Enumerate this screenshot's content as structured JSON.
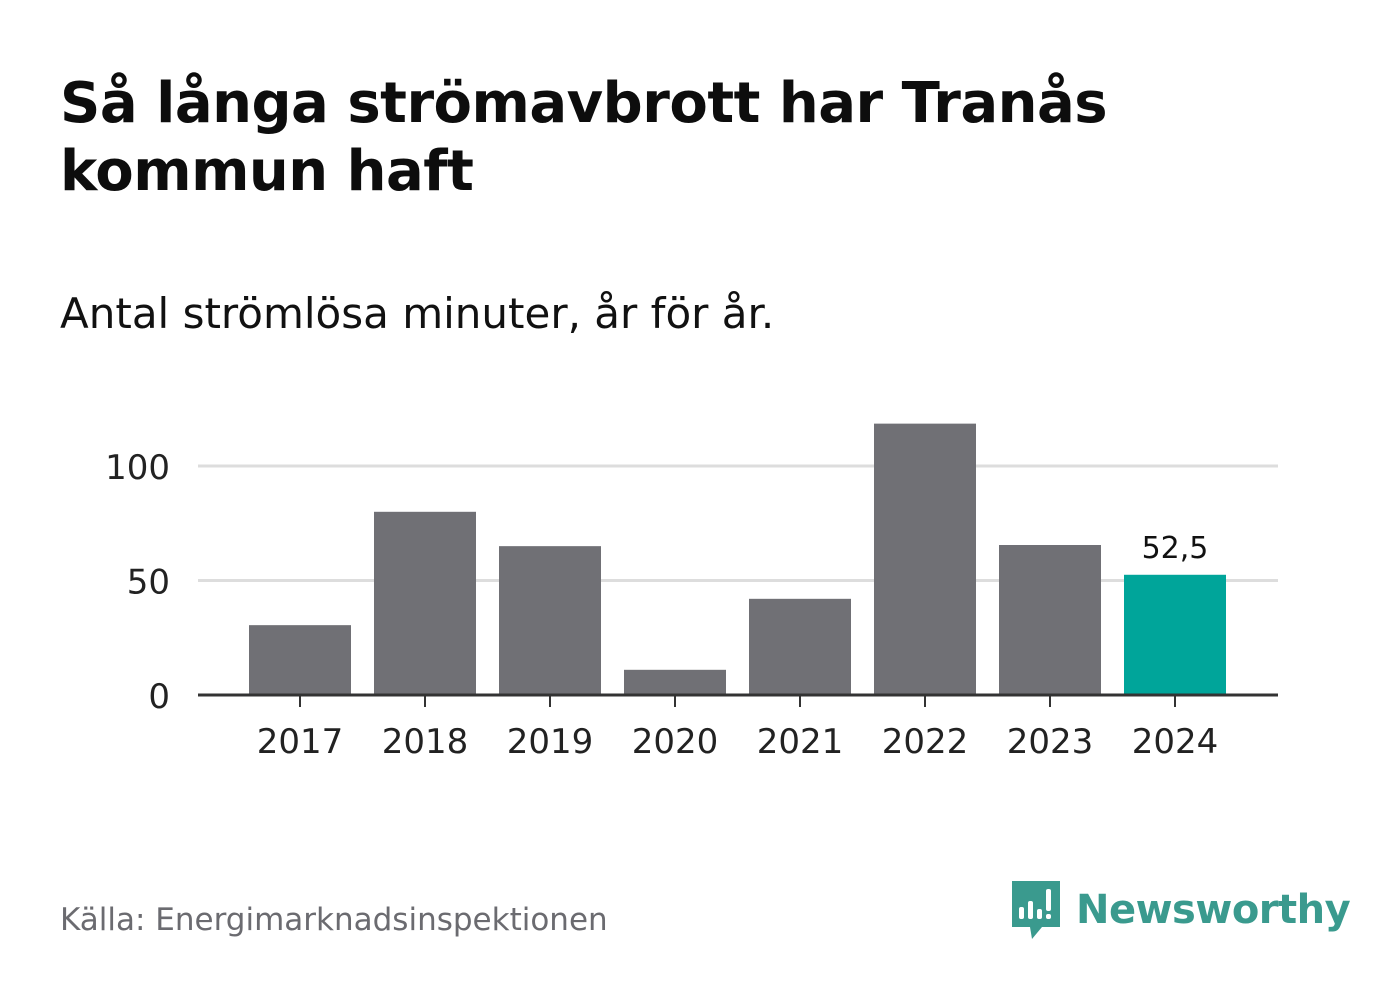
{
  "title": "Så långa strömavbrott har Tranås kommun haft",
  "subtitle": "Antal strömlösa minuter, år för år.",
  "source": "Källa: Energimarknadsinspektionen",
  "brand": {
    "name": "Newsworthy",
    "color": "#3a9a8e"
  },
  "colors": {
    "bar": "#707075",
    "highlight": "#00a59a",
    "grid": "#dddddd",
    "axis": "#333333"
  },
  "chart_data": {
    "type": "bar",
    "categories": [
      "2017",
      "2018",
      "2019",
      "2020",
      "2021",
      "2022",
      "2023",
      "2024"
    ],
    "values": [
      30.5,
      80,
      65,
      11,
      42,
      118.5,
      65.5,
      52.5
    ],
    "highlight_index": 7,
    "data_labels": [
      {
        "index": 7,
        "text": "52,5"
      }
    ],
    "yticks": [
      0,
      50,
      100
    ],
    "ytick_labels": [
      "0",
      "50",
      "100"
    ],
    "ylim": [
      0,
      125
    ],
    "xlabel": "",
    "ylabel": "",
    "grid": true
  }
}
